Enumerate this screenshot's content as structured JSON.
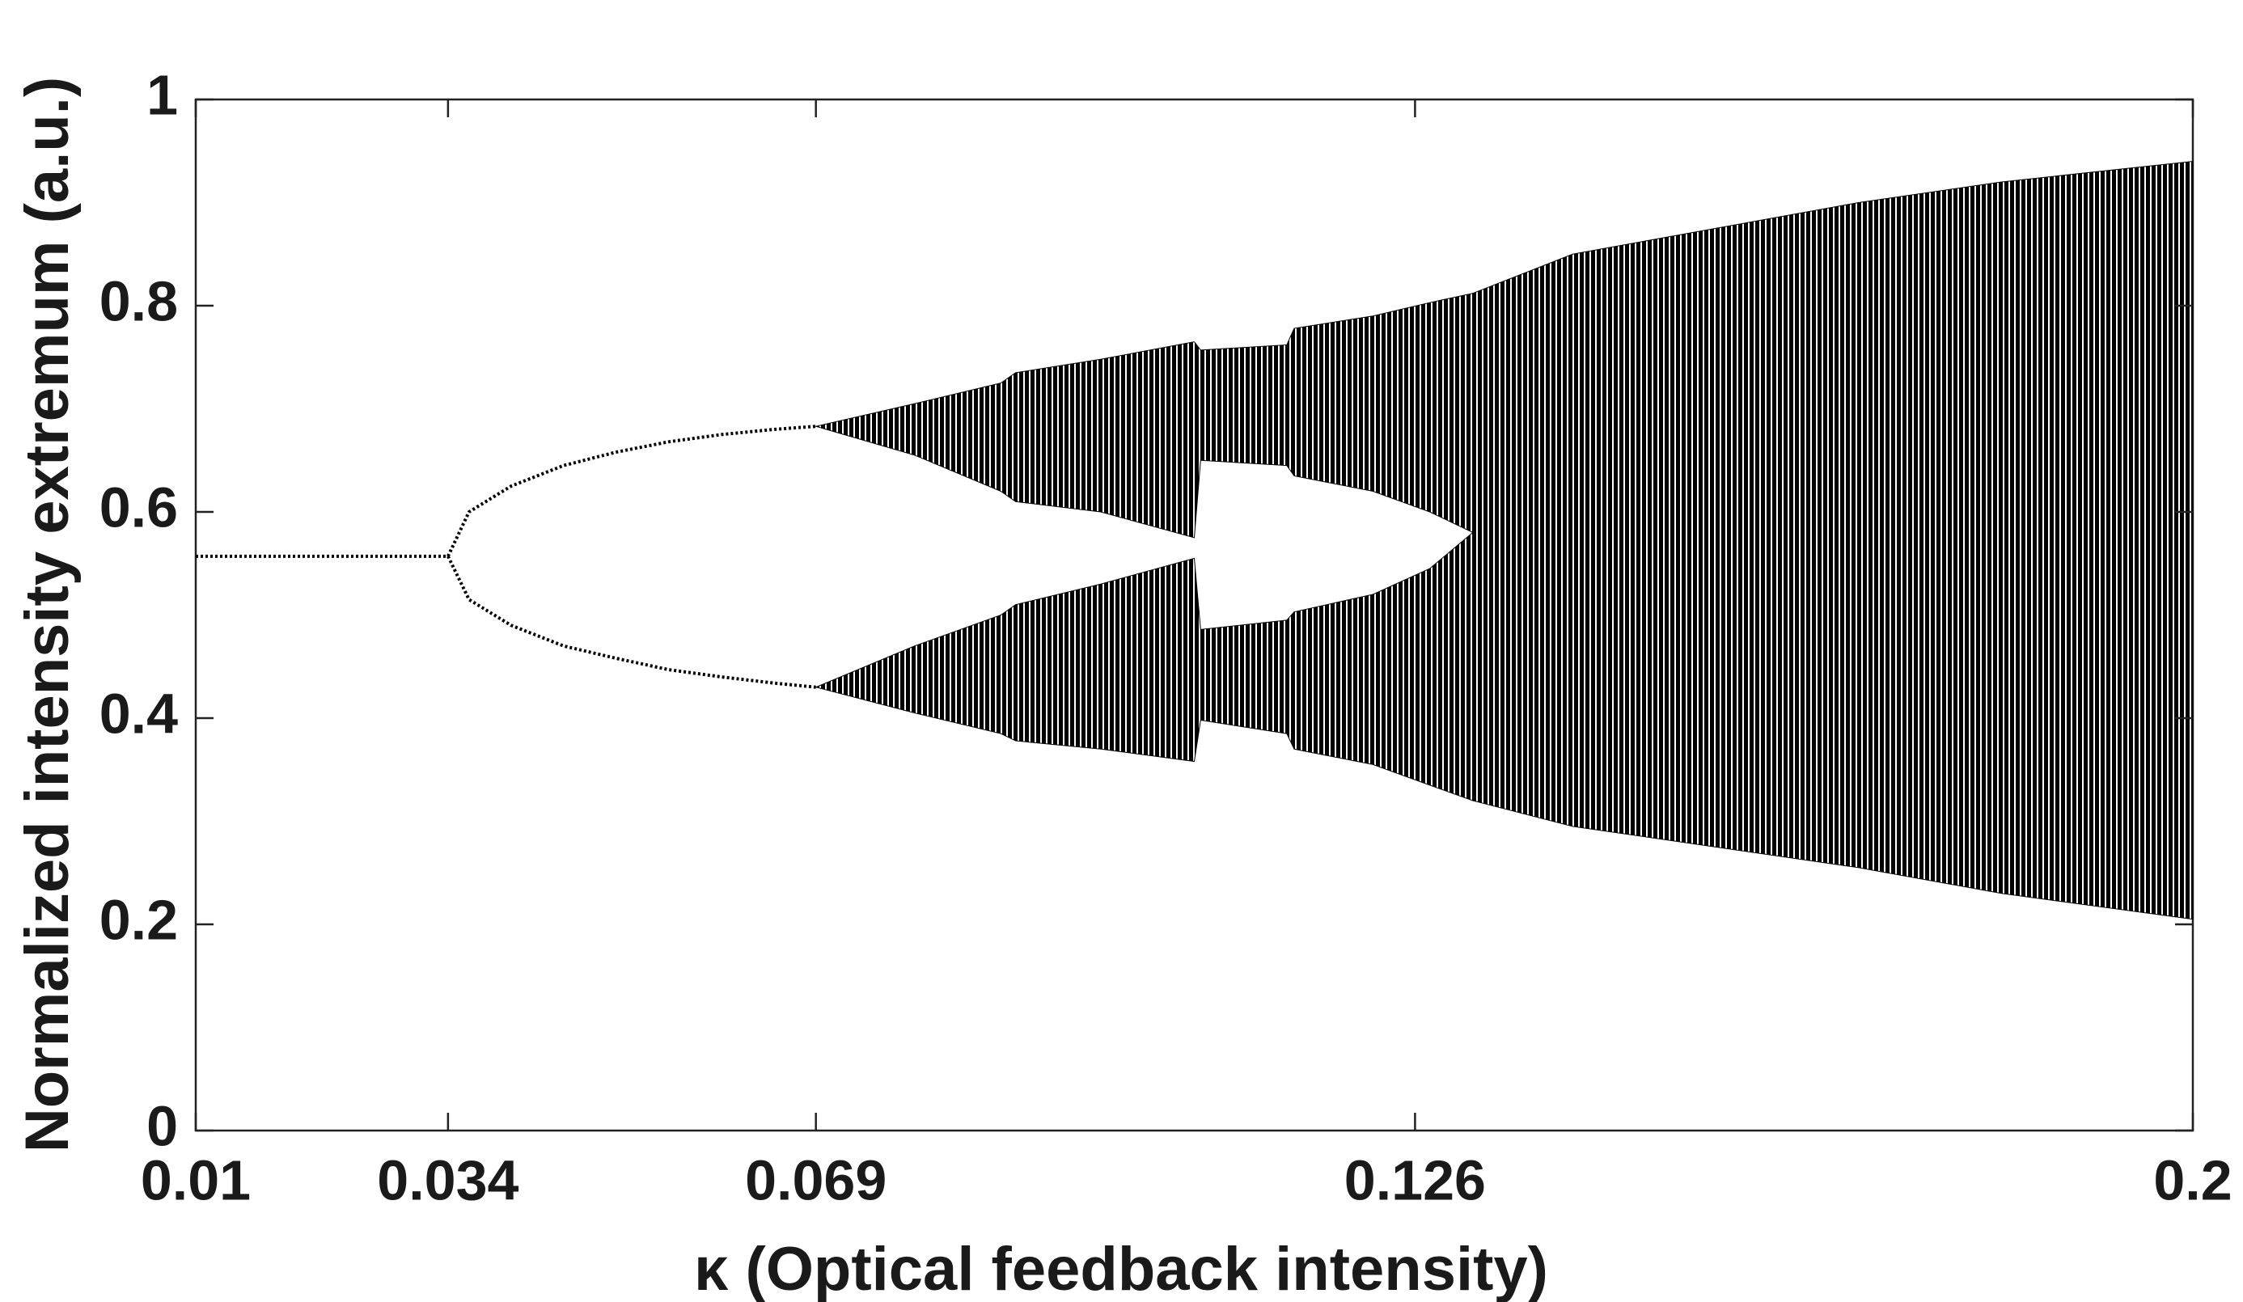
{
  "chart_data": {
    "type": "bifurcation",
    "xlabel": "κ (Optical feedback intensity)",
    "ylabel": "Normalized intensity extremum (a.u.)",
    "xlim": [
      0.01,
      0.2
    ],
    "ylim": [
      0,
      1
    ],
    "xticks": [
      0.01,
      0.034,
      0.069,
      0.126,
      0.2
    ],
    "yticks": [
      0,
      0.2,
      0.4,
      0.6,
      0.8,
      1
    ],
    "color": "#000000",
    "curves": [
      {
        "x": [
          0.01,
          0.034
        ],
        "y": [
          0.557,
          0.557
        ]
      },
      {
        "x": [
          0.034,
          0.036,
          0.04,
          0.045,
          0.05,
          0.055,
          0.06,
          0.065,
          0.069
        ],
        "y": [
          0.557,
          0.6,
          0.625,
          0.645,
          0.658,
          0.668,
          0.675,
          0.68,
          0.683
        ]
      },
      {
        "x": [
          0.034,
          0.036,
          0.04,
          0.045,
          0.05,
          0.055,
          0.06,
          0.065,
          0.069
        ],
        "y": [
          0.557,
          0.515,
          0.49,
          0.47,
          0.458,
          0.447,
          0.44,
          0.434,
          0.43
        ]
      }
    ],
    "bands": [
      {
        "x": [
          0.069,
          0.0784,
          0.0866,
          0.088,
          0.0961,
          0.105,
          0.1056,
          0.1138,
          0.1145,
          0.122,
          0.1274,
          0.1315
        ],
        "high": [
          0.683,
          0.705,
          0.725,
          0.735,
          0.748,
          0.765,
          0.757,
          0.762,
          0.778,
          0.79,
          0.803,
          0.812
        ],
        "low": [
          0.683,
          0.655,
          0.62,
          0.61,
          0.6,
          0.575,
          0.65,
          0.645,
          0.635,
          0.62,
          0.6,
          0.58
        ]
      },
      {
        "x": [
          0.069,
          0.0784,
          0.0866,
          0.088,
          0.0961,
          0.105,
          0.1056,
          0.1138,
          0.1145,
          0.122,
          0.1274,
          0.1315
        ],
        "high": [
          0.43,
          0.47,
          0.5,
          0.51,
          0.53,
          0.555,
          0.486,
          0.495,
          0.503,
          0.52,
          0.545,
          0.58
        ],
        "low": [
          0.43,
          0.405,
          0.385,
          0.378,
          0.37,
          0.358,
          0.398,
          0.385,
          0.37,
          0.355,
          0.335,
          0.32
        ]
      },
      {
        "x": [
          0.1315,
          0.141,
          0.1546,
          0.1682,
          0.1818,
          0.2
        ],
        "high": [
          0.812,
          0.85,
          0.875,
          0.9,
          0.92,
          0.94
        ],
        "low": [
          0.32,
          0.295,
          0.275,
          0.255,
          0.23,
          0.205
        ]
      }
    ]
  }
}
